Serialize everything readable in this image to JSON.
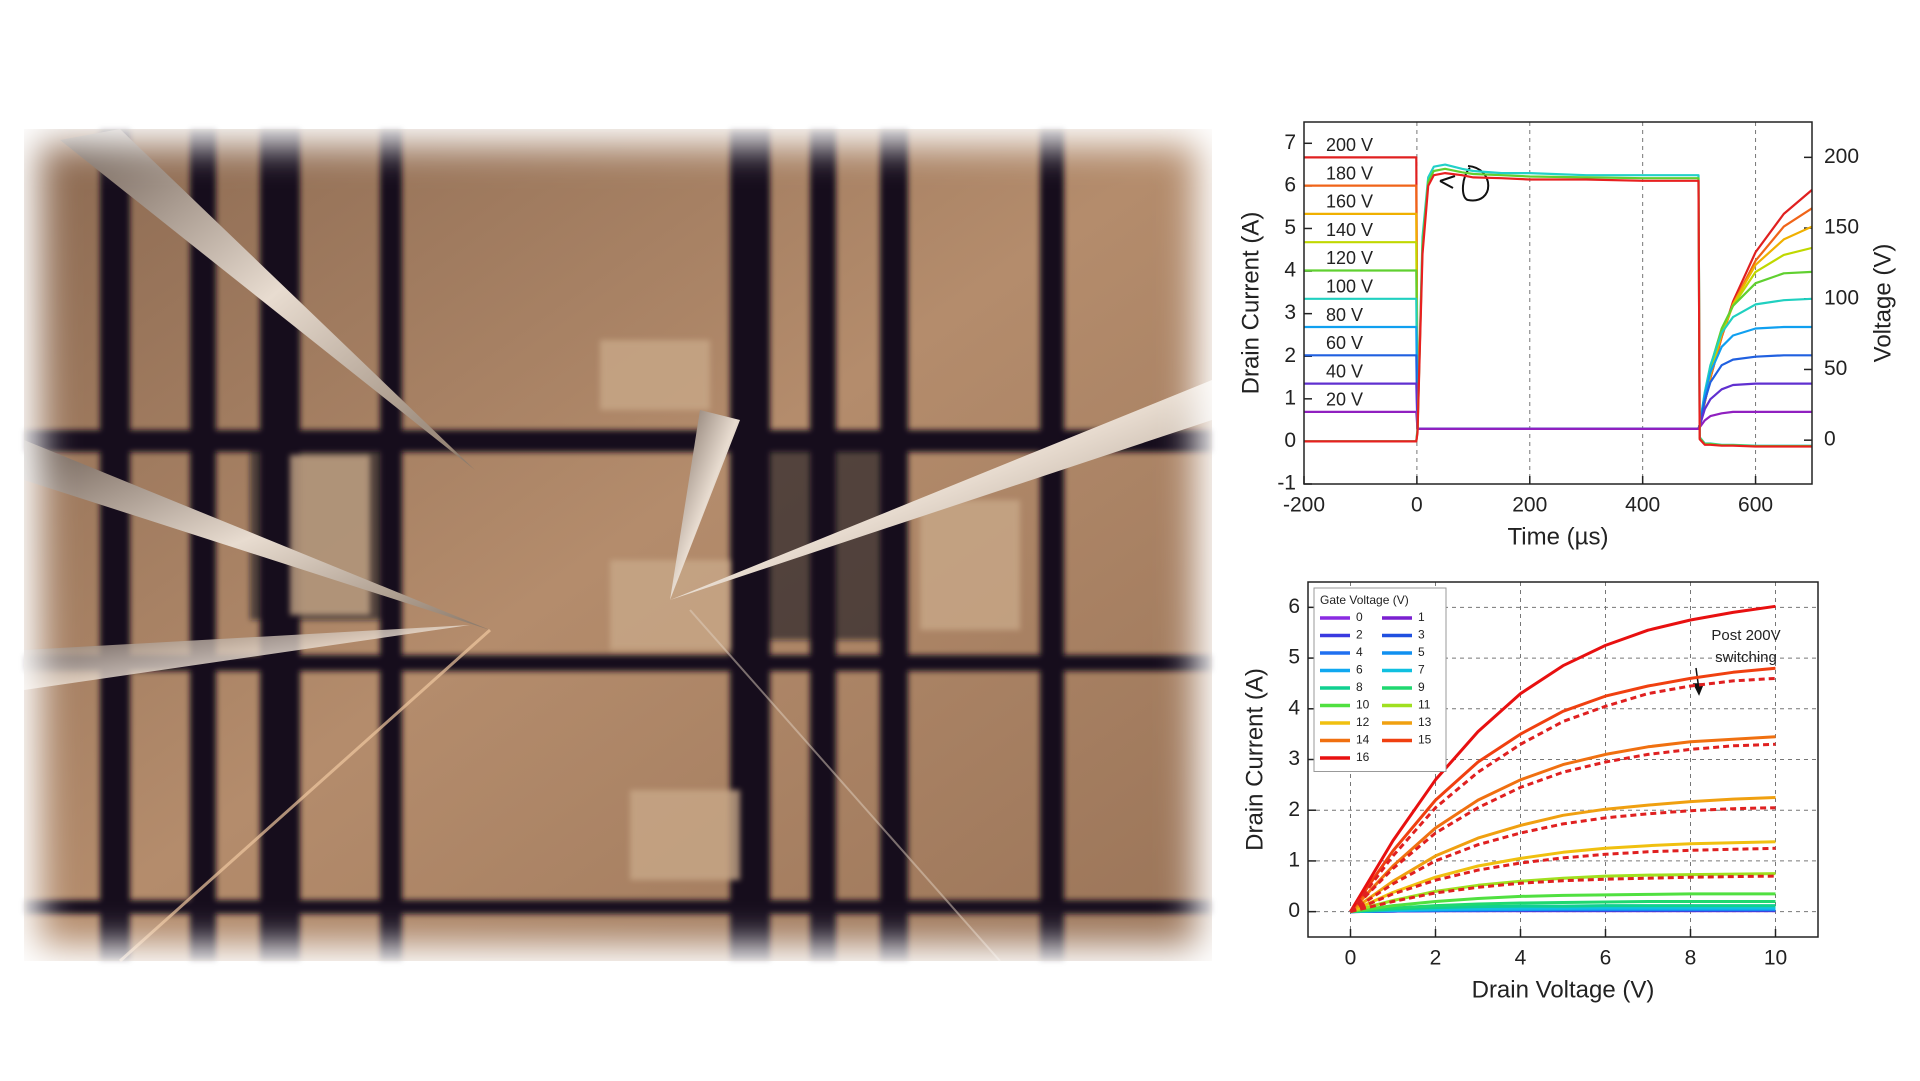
{
  "chart_data": [
    {
      "type": "line",
      "xlabel": "Time (µs)",
      "ylabel": "Drain Current (A)",
      "y2label": "Voltage (V)",
      "xlim": [
        -200,
        700
      ],
      "xticks": [
        -200,
        0,
        200,
        400,
        600
      ],
      "ylim": [
        -1,
        7.5
      ],
      "yticks": [
        -1,
        0,
        1,
        2,
        3,
        4,
        5,
        6,
        7
      ],
      "y2lim": [
        -31,
        225
      ],
      "y2ticks": [
        0,
        50,
        100,
        150,
        200
      ],
      "grid": "x",
      "legend": "inline",
      "x": [
        -200,
        -1,
        1,
        10,
        20,
        30,
        50,
        80,
        100,
        150,
        200,
        300,
        400,
        499,
        501,
        510,
        520,
        540,
        560,
        600,
        650,
        700
      ],
      "series": [
        {
          "name": "200 V",
          "color": "#e02020",
          "axis": "y2",
          "values": [
            200,
            200,
            8,
            8,
            8,
            8,
            8,
            8,
            8,
            8,
            8,
            8,
            8,
            8,
            10,
            27,
            44,
            73,
            98,
            133,
            160,
            177
          ]
        },
        {
          "name": "180 V",
          "color": "#f06418",
          "axis": "y2",
          "values": [
            180,
            180,
            8,
            8,
            8,
            8,
            8,
            8,
            8,
            8,
            8,
            8,
            8,
            8,
            10,
            27,
            44,
            73,
            96,
            127,
            151,
            164
          ]
        },
        {
          "name": "160 V",
          "color": "#f0b000",
          "axis": "y2",
          "values": [
            160,
            160,
            8,
            8,
            8,
            8,
            8,
            8,
            8,
            8,
            8,
            8,
            8,
            8,
            10,
            28,
            46,
            75,
            96,
            124,
            142,
            151
          ]
        },
        {
          "name": "140 V",
          "color": "#c0d800",
          "axis": "y2",
          "values": [
            140,
            140,
            8,
            8,
            8,
            8,
            8,
            8,
            8,
            8,
            8,
            8,
            8,
            8,
            11,
            30,
            48,
            77,
            95,
            119,
            131,
            136
          ]
        },
        {
          "name": "120 V",
          "color": "#60d030",
          "axis": "y2",
          "values": [
            120,
            120,
            8,
            8,
            8,
            8,
            8,
            8,
            8,
            8,
            8,
            8,
            8,
            8,
            10,
            33,
            52,
            79,
            95,
            111,
            118,
            119
          ]
        },
        {
          "name": "100 V",
          "color": "#20d0c0",
          "axis": "y2",
          "values": [
            100,
            100,
            8,
            8,
            8,
            8,
            8,
            8,
            8,
            8,
            8,
            8,
            8,
            8,
            11,
            34,
            53,
            76,
            87,
            96,
            99,
            100
          ]
        },
        {
          "name": "80 V",
          "color": "#10a0f0",
          "axis": "y2",
          "values": [
            80,
            80,
            8,
            8,
            8,
            8,
            8,
            8,
            8,
            8,
            8,
            8,
            8,
            8,
            11,
            32,
            48,
            66,
            74,
            79,
            80,
            80
          ]
        },
        {
          "name": "60 V",
          "color": "#2060e0",
          "axis": "y2",
          "values": [
            60,
            60,
            8,
            8,
            8,
            8,
            8,
            8,
            8,
            8,
            8,
            8,
            8,
            8,
            11,
            28,
            41,
            53,
            57,
            59,
            60,
            60
          ]
        },
        {
          "name": "40 V",
          "color": "#6030d0",
          "axis": "y2",
          "values": [
            40,
            40,
            8,
            8,
            8,
            8,
            8,
            8,
            8,
            8,
            8,
            8,
            8,
            8,
            10,
            22,
            29,
            36,
            39,
            40,
            40,
            40
          ]
        },
        {
          "name": "20 V",
          "color": "#9020c0",
          "axis": "y2",
          "values": [
            20,
            20,
            8,
            8,
            8,
            8,
            8,
            8,
            8,
            8,
            8,
            8,
            8,
            8,
            9,
            14,
            17,
            19,
            20,
            20,
            20,
            20
          ]
        },
        {
          "color": "#22d0c8",
          "axis": "y",
          "values": [
            0,
            0,
            0.3,
            4.8,
            6.2,
            6.45,
            6.5,
            6.4,
            6.35,
            6.3,
            6.3,
            6.25,
            6.25,
            6.25,
            0.1,
            -0.05,
            -0.05,
            -0.08,
            -0.08,
            -0.1,
            -0.1,
            -0.1
          ]
        },
        {
          "color": "#60d030",
          "axis": "y",
          "values": [
            0,
            0,
            0.25,
            4.6,
            6.1,
            6.35,
            6.4,
            6.32,
            6.28,
            6.25,
            6.22,
            6.2,
            6.18,
            6.18,
            0.08,
            -0.06,
            -0.06,
            -0.09,
            -0.09,
            -0.11,
            -0.11,
            -0.11
          ]
        },
        {
          "color": "#e82020",
          "axis": "y",
          "values": [
            0,
            0,
            0.2,
            4.4,
            6.0,
            6.25,
            6.3,
            6.25,
            6.2,
            6.18,
            6.15,
            6.15,
            6.12,
            6.12,
            0.05,
            -0.08,
            -0.08,
            -0.1,
            -0.1,
            -0.12,
            -0.12,
            -0.12
          ]
        }
      ]
    },
    {
      "type": "line",
      "xlabel": "Drain Voltage (V)",
      "ylabel": "Drain Current (A)",
      "xlim": [
        -1,
        11
      ],
      "xticks": [
        0,
        2,
        4,
        6,
        8,
        10
      ],
      "ylim": [
        -0.5,
        6.5
      ],
      "yticks": [
        0,
        1,
        2,
        3,
        4,
        5,
        6
      ],
      "grid": true,
      "legend": "upper left",
      "legend_title": "Gate Voltage (V)",
      "annotation": [
        "Post 200V",
        "switching"
      ],
      "x": [
        0,
        1,
        2,
        3,
        4,
        5,
        6,
        7,
        8,
        9,
        10
      ],
      "series": [
        {
          "name": "0",
          "color": "#8a2be2",
          "values": [
            0,
            0.01,
            0.02,
            0.02,
            0.02,
            0.02,
            0.02,
            0.02,
            0.02,
            0.02,
            0.02
          ]
        },
        {
          "name": "1",
          "color": "#7a1fd0",
          "values": [
            0,
            0.01,
            0.02,
            0.02,
            0.02,
            0.02,
            0.02,
            0.02,
            0.02,
            0.02,
            0.02
          ]
        },
        {
          "name": "2",
          "color": "#3a3ae0",
          "values": [
            0,
            0.01,
            0.02,
            0.02,
            0.03,
            0.03,
            0.03,
            0.03,
            0.03,
            0.03,
            0.03
          ]
        },
        {
          "name": "3",
          "color": "#2050e0",
          "values": [
            0,
            0.02,
            0.02,
            0.03,
            0.03,
            0.03,
            0.03,
            0.03,
            0.03,
            0.03,
            0.03
          ]
        },
        {
          "name": "4",
          "color": "#2070f0",
          "values": [
            0,
            0.02,
            0.03,
            0.03,
            0.04,
            0.04,
            0.04,
            0.04,
            0.04,
            0.04,
            0.04
          ]
        },
        {
          "name": "5",
          "color": "#1090f0",
          "values": [
            0,
            0.02,
            0.03,
            0.04,
            0.04,
            0.05,
            0.05,
            0.05,
            0.05,
            0.05,
            0.05
          ]
        },
        {
          "name": "6",
          "color": "#10a8f0",
          "values": [
            0,
            0.02,
            0.04,
            0.05,
            0.05,
            0.06,
            0.06,
            0.06,
            0.06,
            0.06,
            0.06
          ]
        },
        {
          "name": "7",
          "color": "#10c0e0",
          "values": [
            0,
            0.03,
            0.05,
            0.06,
            0.07,
            0.07,
            0.08,
            0.08,
            0.08,
            0.08,
            0.08
          ]
        },
        {
          "name": "8",
          "color": "#10d090",
          "values": [
            0,
            0.05,
            0.08,
            0.1,
            0.11,
            0.11,
            0.12,
            0.12,
            0.12,
            0.12,
            0.12
          ]
        },
        {
          "name": "9",
          "color": "#20d870",
          "values": [
            0,
            0.07,
            0.12,
            0.15,
            0.17,
            0.18,
            0.19,
            0.2,
            0.2,
            0.2,
            0.2
          ]
        },
        {
          "name": "10",
          "color": "#50e040",
          "values": [
            0,
            0.12,
            0.2,
            0.26,
            0.3,
            0.32,
            0.33,
            0.34,
            0.35,
            0.35,
            0.35
          ]
        },
        {
          "name": "11",
          "color": "#a0e020",
          "values": [
            0,
            0.22,
            0.4,
            0.52,
            0.6,
            0.66,
            0.7,
            0.72,
            0.73,
            0.74,
            0.75
          ]
        },
        {
          "name": "12",
          "color": "#f0c010",
          "values": [
            0,
            0.38,
            0.68,
            0.9,
            1.05,
            1.17,
            1.25,
            1.3,
            1.34,
            1.36,
            1.38
          ]
        },
        {
          "name": "13",
          "color": "#f0a010",
          "values": [
            0,
            0.6,
            1.1,
            1.45,
            1.7,
            1.9,
            2.02,
            2.1,
            2.17,
            2.22,
            2.25
          ]
        },
        {
          "name": "14",
          "color": "#f07010",
          "values": [
            0,
            0.9,
            1.65,
            2.2,
            2.6,
            2.9,
            3.1,
            3.25,
            3.35,
            3.4,
            3.45
          ]
        },
        {
          "name": "15",
          "color": "#f04010",
          "values": [
            0,
            1.2,
            2.2,
            2.95,
            3.5,
            3.95,
            4.25,
            4.45,
            4.6,
            4.72,
            4.8
          ]
        },
        {
          "name": "16",
          "color": "#e81010",
          "values": [
            0,
            1.4,
            2.6,
            3.55,
            4.3,
            4.85,
            5.25,
            5.55,
            5.75,
            5.9,
            6.02
          ]
        },
        {
          "color": "#e02020",
          "dashed": true,
          "values": [
            0,
            1.1,
            2.05,
            2.75,
            3.3,
            3.75,
            4.05,
            4.3,
            4.45,
            4.55,
            4.6
          ]
        },
        {
          "color": "#e02020",
          "dashed": true,
          "values": [
            0,
            0.85,
            1.55,
            2.05,
            2.45,
            2.75,
            2.95,
            3.1,
            3.2,
            3.27,
            3.3
          ]
        },
        {
          "color": "#e02020",
          "dashed": true,
          "values": [
            0,
            0.55,
            1.0,
            1.32,
            1.55,
            1.73,
            1.85,
            1.93,
            1.99,
            2.03,
            2.05
          ]
        },
        {
          "color": "#e02020",
          "dashed": true,
          "values": [
            0,
            0.35,
            0.62,
            0.82,
            0.96,
            1.06,
            1.13,
            1.18,
            1.21,
            1.23,
            1.25
          ]
        },
        {
          "color": "#e02020",
          "dashed": true,
          "values": [
            0,
            0.2,
            0.37,
            0.48,
            0.56,
            0.61,
            0.64,
            0.66,
            0.68,
            0.69,
            0.7
          ]
        }
      ]
    }
  ]
}
